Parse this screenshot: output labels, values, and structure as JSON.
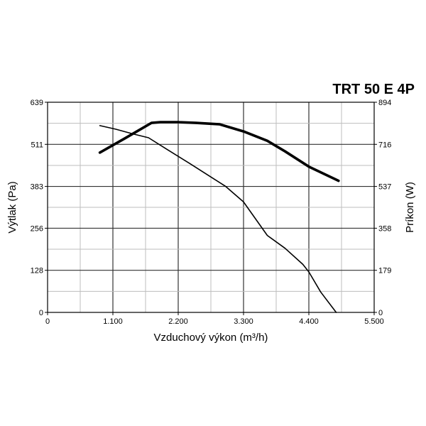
{
  "chart_data": {
    "type": "line",
    "title": "TRT 50 E 4P",
    "xlabel": "Vzduchový výkon (m³/h)",
    "ylabel_left": "Výtlak (Pa)",
    "ylabel_right": "Príkon (W)",
    "xlim": [
      0,
      5500
    ],
    "ylim_left": [
      0,
      639
    ],
    "ylim_right": [
      0,
      894
    ],
    "x_tick_values": [
      0,
      1100,
      2200,
      3300,
      4400,
      5500
    ],
    "x_tick_labels": [
      "0",
      "1.100",
      "2.200",
      "3.300",
      "4.400",
      "5.500"
    ],
    "y_left_tick_values": [
      0,
      128,
      256,
      383,
      511,
      639
    ],
    "y_left_tick_labels": [
      "0",
      "128",
      "256",
      "383",
      "511",
      "639"
    ],
    "y_right_tick_labels": [
      "0",
      "179",
      "358",
      "537",
      "716",
      "894"
    ],
    "grid": true,
    "series": [
      {
        "axis": "left",
        "stroke": "#000000",
        "weight": "thin",
        "points": [
          [
            880,
            568
          ],
          [
            1150,
            557
          ],
          [
            1450,
            542
          ],
          [
            1700,
            531
          ],
          [
            2000,
            497
          ],
          [
            2400,
            452
          ],
          [
            2800,
            406
          ],
          [
            3000,
            383
          ],
          [
            3300,
            336
          ],
          [
            3700,
            234
          ],
          [
            4000,
            195
          ],
          [
            4300,
            146
          ],
          [
            4400,
            123
          ],
          [
            4600,
            62
          ],
          [
            4860,
            0
          ]
        ]
      },
      {
        "axis": "right",
        "stroke": "#000000",
        "weight": "thick",
        "points": [
          [
            880,
            680
          ],
          [
            1300,
            740
          ],
          [
            1750,
            806
          ],
          [
            1900,
            809
          ],
          [
            2200,
            809
          ],
          [
            2500,
            806
          ],
          [
            2900,
            800
          ],
          [
            3300,
            770
          ],
          [
            3700,
            730
          ],
          [
            4000,
            685
          ],
          [
            4400,
            620
          ],
          [
            4900,
            560
          ]
        ]
      }
    ]
  }
}
